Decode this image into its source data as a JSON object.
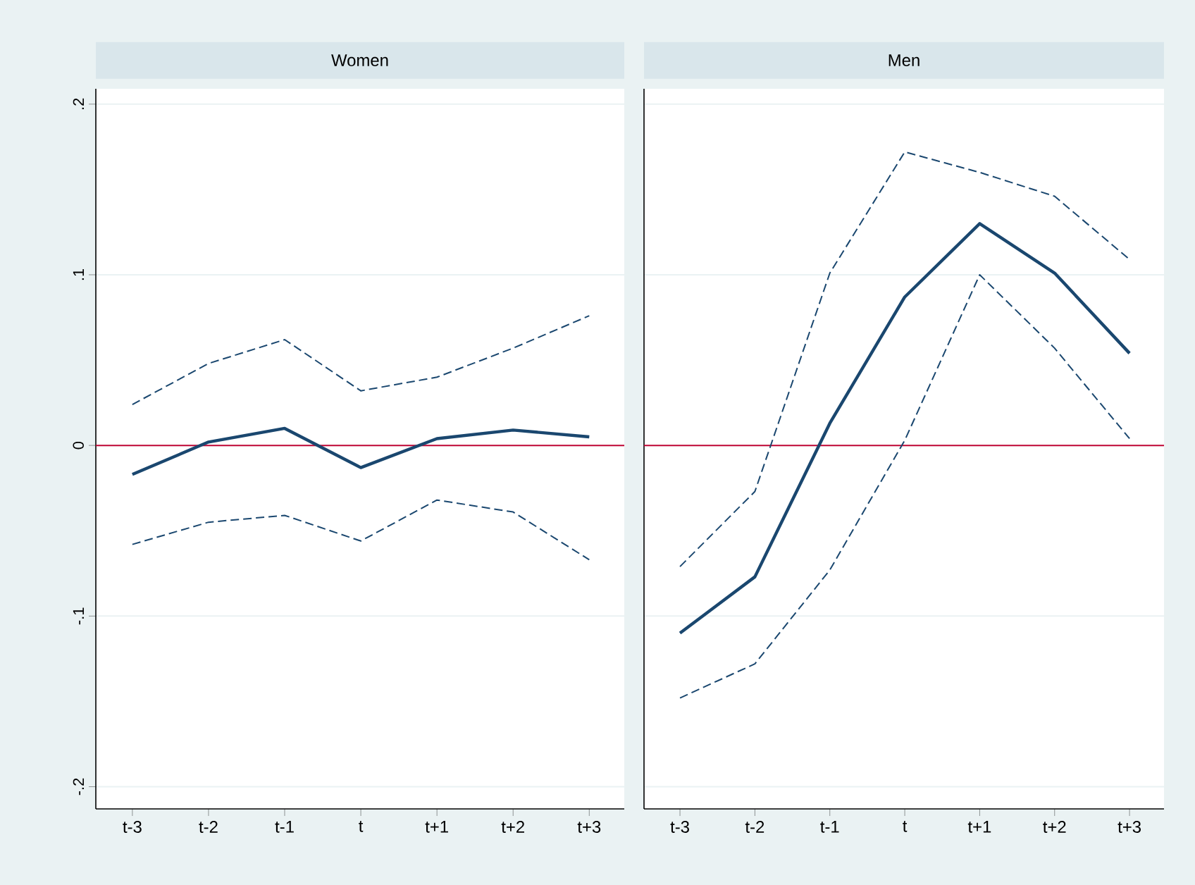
{
  "chart_data": [
    {
      "type": "line",
      "title": "Women",
      "categories": [
        "t-3",
        "t-2",
        "t-1",
        "t",
        "t+1",
        "t+2",
        "t+3"
      ],
      "series": [
        {
          "color": "#1a476f",
          "line_style": "solid",
          "values": [
            -0.017,
            0.002,
            0.01,
            -0.013,
            0.004,
            0.009,
            0.005
          ]
        },
        {
          "color": "#1a476f",
          "line_style": "dashed",
          "values": [
            0.024,
            0.048,
            0.062,
            0.032,
            0.04,
            0.057,
            0.076
          ]
        },
        {
          "color": "#1a476f",
          "line_style": "dashed",
          "values": [
            -0.058,
            -0.045,
            -0.041,
            -0.056,
            -0.032,
            -0.039,
            -0.067
          ]
        }
      ],
      "ylim": [
        -0.213,
        0.209
      ],
      "yticks": [
        {
          "value": -0.2,
          "label": "-.2"
        },
        {
          "value": -0.1,
          "label": "-.1"
        },
        0,
        {
          "value": 0.1,
          "label": ".1"
        },
        {
          "value": 0.2,
          "label": ".2"
        }
      ],
      "grid": "y",
      "marker": "none",
      "ref_lines": [
        {
          "axis": "y",
          "value": 0,
          "color": "#c10534"
        }
      ]
    },
    {
      "type": "line",
      "title": "Men",
      "categories": [
        "t-3",
        "t-2",
        "t-1",
        "t",
        "t+1",
        "t+2",
        "t+3"
      ],
      "series": [
        {
          "color": "#1a476f",
          "line_style": "solid",
          "values": [
            -0.11,
            -0.077,
            0.013,
            0.087,
            0.13,
            0.101,
            0.054
          ]
        },
        {
          "color": "#1a476f",
          "line_style": "dashed",
          "values": [
            -0.071,
            -0.027,
            0.101,
            0.172,
            0.16,
            0.146,
            0.109
          ]
        },
        {
          "color": "#1a476f",
          "line_style": "dashed",
          "values": [
            -0.148,
            -0.128,
            -0.073,
            0.003,
            0.1,
            0.057,
            0.004
          ]
        }
      ],
      "ylim": [
        -0.213,
        0.209
      ],
      "yticks": [
        {
          "value": -0.2,
          "label": null
        },
        {
          "value": -0.1,
          "label": null
        },
        {
          "value": 0,
          "label": null
        },
        {
          "value": 0.1,
          "label": null
        },
        {
          "value": 0.2,
          "label": null
        }
      ],
      "grid": "y",
      "marker": "none",
      "tick_labels": "x",
      "ref_lines": [
        {
          "axis": "y",
          "value": 0,
          "color": "#c10534"
        }
      ]
    }
  ]
}
